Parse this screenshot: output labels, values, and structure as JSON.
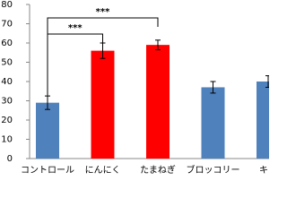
{
  "chart_data": {
    "type": "bar",
    "categories": [
      "コントロール",
      "にんにく",
      "たまねぎ",
      "ブロッコリー",
      "キャ"
    ],
    "values": [
      29,
      56,
      59,
      37,
      40
    ],
    "errors": [
      3.5,
      4,
      2.5,
      3,
      3
    ],
    "colors": [
      "#4f81bd",
      "#ff0000",
      "#ff0000",
      "#4f81bd",
      "#4f81bd"
    ],
    "ylim": [
      0,
      80
    ],
    "yticks": [
      0,
      10,
      20,
      30,
      40,
      50,
      60,
      70,
      80
    ],
    "annotations": [
      "***",
      "***"
    ]
  }
}
